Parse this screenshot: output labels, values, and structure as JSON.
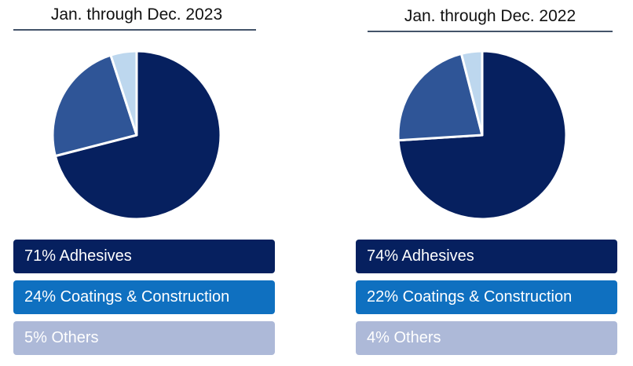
{
  "colors": {
    "adhesives": "#06205f",
    "coatings_slice": "#2f5597",
    "coatings_box": "#0f70c0",
    "others_slice": "#bdd7ee",
    "others_box": "#adb9d8",
    "rule": "#44546a"
  },
  "chart_data": [
    {
      "type": "pie",
      "title": "Jan. through Dec. 2023",
      "categories": [
        "Adhesives",
        "Coatings & Construction",
        "Others"
      ],
      "values": [
        71,
        24,
        5
      ],
      "unit": "%",
      "legend": [
        "71% Adhesives",
        "24% Coatings & Construction",
        "5% Others"
      ]
    },
    {
      "type": "pie",
      "title": "Jan. through Dec. 2022",
      "categories": [
        "Adhesives",
        "Coatings & Construction",
        "Others"
      ],
      "values": [
        74,
        22,
        4
      ],
      "unit": "%",
      "legend": [
        "74% Adhesives",
        "22% Coatings & Construction",
        "4% Others"
      ]
    }
  ]
}
